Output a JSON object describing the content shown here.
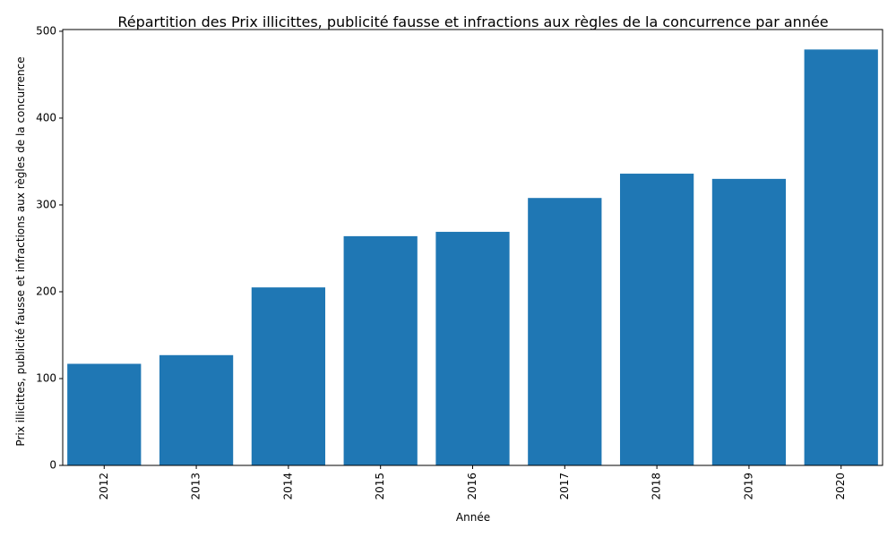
{
  "chart_data": {
    "type": "bar",
    "title": "Répartition des Prix illicittes, publicité fausse et infractions aux règles de la concurrence par année",
    "xlabel": "Année",
    "ylabel": "Prix illicittes, publicité fausse et infractions aux règles de la concurrence",
    "categories": [
      "2012",
      "2013",
      "2014",
      "2015",
      "2016",
      "2017",
      "2018",
      "2019",
      "2020"
    ],
    "values": [
      117,
      127,
      205,
      264,
      269,
      308,
      336,
      330,
      479
    ],
    "ylim": [
      0,
      502
    ],
    "yticks": [
      0,
      100,
      200,
      300,
      400,
      500
    ],
    "bar_color": "#1f77b4",
    "grid": false,
    "legend": "none"
  }
}
